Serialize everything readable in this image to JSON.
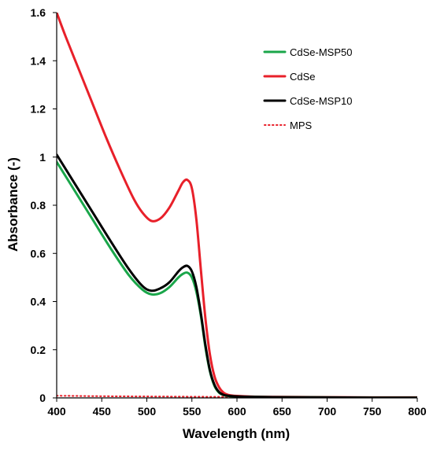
{
  "chart_data": {
    "type": "line",
    "title": "",
    "xlabel": "Wavelength (nm)",
    "ylabel": "Absorbance (-)",
    "xlim": [
      400,
      800
    ],
    "ylim": [
      0,
      1.6
    ],
    "x_ticks": [
      "400",
      "450",
      "500",
      "550",
      "600",
      "650",
      "700",
      "750",
      "800"
    ],
    "y_ticks": [
      "0",
      "0.2",
      "0.4",
      "0.6",
      "0.8",
      "1",
      "1.2",
      "1.4",
      "1.6"
    ],
    "grid": false,
    "legend_position": "top-right",
    "series": [
      {
        "name": "CdSe-MSP50",
        "color": "#1aa64a",
        "style": "solid",
        "x": [
          400,
          420,
          440,
          460,
          480,
          495,
          505,
          515,
          525,
          535,
          540,
          545,
          550,
          555,
          560,
          565,
          570,
          575,
          580,
          585,
          590,
          600,
          620,
          650,
          700,
          750,
          800
        ],
        "y": [
          0.98,
          0.86,
          0.74,
          0.62,
          0.51,
          0.45,
          0.43,
          0.435,
          0.46,
          0.5,
          0.515,
          0.52,
          0.5,
          0.44,
          0.34,
          0.21,
          0.11,
          0.05,
          0.022,
          0.012,
          0.008,
          0.005,
          0.004,
          0.003,
          0.002,
          0.001,
          0.001
        ]
      },
      {
        "name": "CdSe",
        "color": "#e8202a",
        "style": "solid",
        "x": [
          400,
          410,
          425,
          440,
          455,
          470,
          485,
          495,
          505,
          515,
          525,
          535,
          540,
          545,
          550,
          555,
          560,
          565,
          570,
          575,
          580,
          585,
          590,
          600,
          620,
          650,
          700,
          750,
          800
        ],
        "y": [
          1.6,
          1.5,
          1.36,
          1.22,
          1.08,
          0.95,
          0.83,
          0.77,
          0.735,
          0.745,
          0.79,
          0.86,
          0.895,
          0.905,
          0.87,
          0.74,
          0.53,
          0.33,
          0.18,
          0.09,
          0.045,
          0.022,
          0.013,
          0.008,
          0.005,
          0.004,
          0.003,
          0.002,
          0.002
        ]
      },
      {
        "name": "CdSe-MSP10",
        "color": "#000000",
        "style": "solid",
        "x": [
          400,
          420,
          440,
          460,
          480,
          495,
          505,
          515,
          525,
          535,
          540,
          545,
          550,
          555,
          560,
          565,
          570,
          575,
          580,
          585,
          590,
          600,
          620,
          650,
          700,
          750,
          800
        ],
        "y": [
          1.01,
          0.89,
          0.77,
          0.65,
          0.535,
          0.465,
          0.445,
          0.455,
          0.48,
          0.525,
          0.542,
          0.548,
          0.525,
          0.46,
          0.35,
          0.22,
          0.115,
          0.055,
          0.025,
          0.013,
          0.009,
          0.006,
          0.004,
          0.003,
          0.002,
          0.001,
          0.001
        ]
      },
      {
        "name": "MPS",
        "color": "#e8202a",
        "style": "dotted",
        "x": [
          400,
          450,
          500,
          550,
          600,
          650,
          700,
          750,
          800
        ],
        "y": [
          0.009,
          0.007,
          0.006,
          0.005,
          0.004,
          0.003,
          0.003,
          0.002,
          0.002
        ]
      }
    ]
  }
}
